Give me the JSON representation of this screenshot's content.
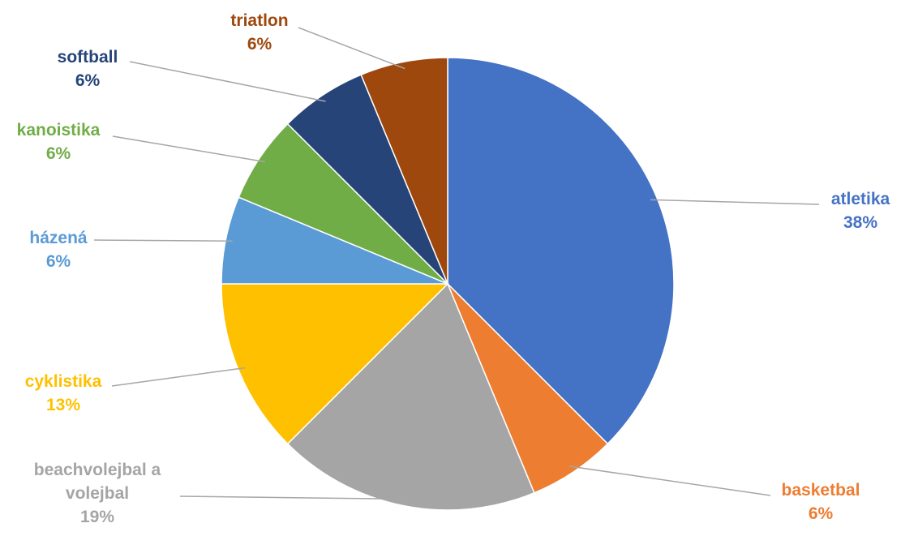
{
  "chart_data": {
    "type": "pie",
    "title": "",
    "start_angle_deg": 0,
    "direction": "clockwise",
    "slices": [
      {
        "label": [
          "atletika"
        ],
        "value_label": "38%",
        "value": 37.5,
        "color": "#4472C4"
      },
      {
        "label": [
          "basketbal"
        ],
        "value_label": "6%",
        "value": 6.25,
        "color": "#ED7D31"
      },
      {
        "label": [
          "beachvolejbal a",
          "volejbal"
        ],
        "value_label": "19%",
        "value": 18.75,
        "color": "#A5A5A5"
      },
      {
        "label": [
          "cyklistika"
        ],
        "value_label": "13%",
        "value": 12.5,
        "color": "#FFC000"
      },
      {
        "label": [
          "házená"
        ],
        "value_label": "6%",
        "value": 6.25,
        "color": "#5B9BD5"
      },
      {
        "label": [
          "kanoistika"
        ],
        "value_label": "6%",
        "value": 6.25,
        "color": "#70AD47"
      },
      {
        "label": [
          "softball"
        ],
        "value_label": "6%",
        "value": 6.25,
        "color": "#264478"
      },
      {
        "label": [
          "triatlon"
        ],
        "value_label": "6%",
        "value": 6.25,
        "color": "#9E480E"
      }
    ],
    "slice_border_color": "#FFFFFF",
    "leader_line_color": "#A6A6A6",
    "label_placement": "outside with leader lines"
  }
}
